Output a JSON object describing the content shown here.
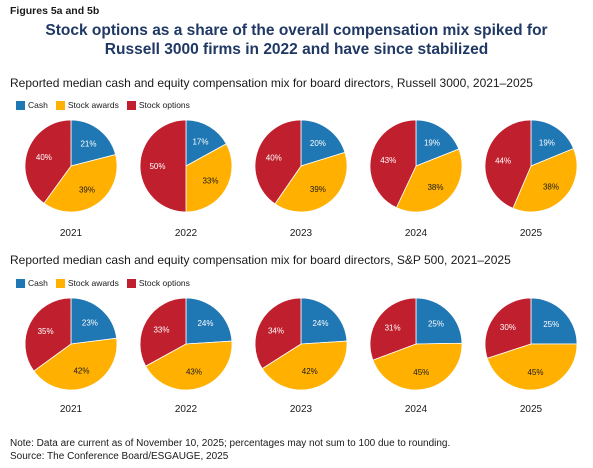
{
  "figure_label": "Figures 5a and 5b",
  "title_line1": "Stock options as a share of the overall compensation mix spiked for",
  "title_line2": "Russell 3000 firms in 2022 and have since stabilized",
  "colors": {
    "cash": "#1f77b4",
    "stock_awards": "#ffb000",
    "stock_options": "#c0202e",
    "text": "#1a1a1a",
    "title": "#1f3864"
  },
  "legend": [
    {
      "key": "cash",
      "label": "Cash",
      "color": "#1f77b4"
    },
    {
      "key": "stock_awards",
      "label": "Stock awards",
      "color": "#ffb000"
    },
    {
      "key": "stock_options",
      "label": "Stock options",
      "color": "#c0202e"
    }
  ],
  "chart_data": [
    {
      "type": "pie",
      "title": "Reported median cash and equity compensation mix for board directors, Russell 3000, 2021–2025",
      "series_names": [
        "Cash",
        "Stock awards",
        "Stock options"
      ],
      "pies": [
        {
          "year": "2021",
          "cash": 21,
          "stock_awards": 39,
          "stock_options": 40
        },
        {
          "year": "2022",
          "cash": 17,
          "stock_awards": 33,
          "stock_options": 50
        },
        {
          "year": "2023",
          "cash": 20,
          "stock_awards": 39,
          "stock_options": 40
        },
        {
          "year": "2024",
          "cash": 19,
          "stock_awards": 38,
          "stock_options": 43
        },
        {
          "year": "2025",
          "cash": 19,
          "stock_awards": 38,
          "stock_options": 44
        }
      ]
    },
    {
      "type": "pie",
      "title": "Reported median cash and equity compensation mix for board directors, S&P 500, 2021–2025",
      "series_names": [
        "Cash",
        "Stock awards",
        "Stock options"
      ],
      "pies": [
        {
          "year": "2021",
          "cash": 23,
          "stock_awards": 42,
          "stock_options": 35
        },
        {
          "year": "2022",
          "cash": 24,
          "stock_awards": 43,
          "stock_options": 33
        },
        {
          "year": "2023",
          "cash": 24,
          "stock_awards": 42,
          "stock_options": 34
        },
        {
          "year": "2024",
          "cash": 25,
          "stock_awards": 45,
          "stock_options": 31
        },
        {
          "year": "2025",
          "cash": 25,
          "stock_awards": 45,
          "stock_options": 30
        }
      ]
    }
  ],
  "note": "Note: Data are current as of November 10, 2025; percentages may not sum to 100 due to rounding.",
  "source": "Source: The Conference Board/ESGAUGE, 2025"
}
